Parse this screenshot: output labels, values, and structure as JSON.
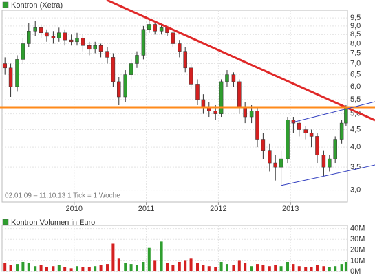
{
  "chart_data": [
    {
      "type": "candlestick",
      "title": "Kontron (Xetra)",
      "annotation": "02.01.09 – 11.10.13  1 Tick = 1 Woche",
      "x": [
        2009.04,
        2009.12,
        2009.21,
        2009.29,
        2009.37,
        2009.46,
        2009.54,
        2009.62,
        2009.71,
        2009.79,
        2009.87,
        2009.96,
        2010.04,
        2010.12,
        2010.21,
        2010.29,
        2010.37,
        2010.46,
        2010.54,
        2010.62,
        2010.71,
        2010.79,
        2010.87,
        2010.96,
        2011.04,
        2011.12,
        2011.21,
        2011.29,
        2011.37,
        2011.46,
        2011.54,
        2011.62,
        2011.71,
        2011.79,
        2011.87,
        2011.96,
        2012.04,
        2012.12,
        2012.21,
        2012.29,
        2012.37,
        2012.46,
        2012.54,
        2012.62,
        2012.71,
        2012.79,
        2012.87,
        2012.96,
        2013.04,
        2013.12,
        2013.21,
        2013.29,
        2013.37,
        2013.46,
        2013.54,
        2013.62,
        2013.71,
        2013.77
      ],
      "open": [
        7.0,
        6.8,
        6.0,
        7.2,
        8.0,
        8.7,
        8.9,
        8.6,
        8.4,
        8.3,
        8.6,
        8.2,
        8.1,
        8.3,
        7.9,
        7.7,
        7.9,
        7.6,
        7.3,
        6.2,
        5.6,
        6.5,
        7.0,
        7.4,
        8.8,
        9.1,
        8.7,
        8.9,
        8.6,
        8.0,
        7.6,
        6.8,
        6.1,
        5.5,
        5.2,
        5.1,
        5.0,
        6.2,
        6.5,
        6.2,
        5.2,
        4.9,
        5.1,
        4.2,
        3.9,
        3.6,
        3.5,
        3.7,
        4.8,
        4.7,
        4.5,
        4.4,
        4.3,
        3.8,
        3.5,
        3.7,
        4.2,
        4.7
      ],
      "high": [
        7.3,
        7.0,
        7.4,
        8.3,
        9.2,
        9.3,
        9.1,
        8.8,
        8.7,
        8.9,
        8.8,
        8.5,
        8.6,
        8.5,
        8.1,
        8.1,
        8.0,
        7.8,
        7.5,
        6.4,
        6.7,
        7.2,
        7.6,
        9.0,
        9.4,
        9.2,
        9.1,
        9.0,
        8.7,
        8.2,
        7.8,
        7.0,
        6.3,
        5.7,
        5.4,
        5.3,
        6.3,
        6.7,
        6.6,
        6.3,
        5.4,
        5.3,
        5.2,
        4.4,
        4.1,
        3.8,
        3.9,
        4.9,
        4.9,
        4.8,
        4.6,
        4.5,
        4.4,
        3.9,
        3.8,
        4.3,
        4.8,
        5.3
      ],
      "low": [
        6.5,
        5.6,
        5.8,
        7.0,
        7.8,
        8.4,
        8.3,
        8.1,
        8.0,
        8.1,
        7.9,
        7.9,
        7.9,
        7.6,
        7.4,
        7.5,
        7.3,
        7.0,
        6.0,
        5.3,
        5.4,
        6.3,
        6.8,
        7.2,
        8.6,
        8.5,
        8.5,
        8.4,
        7.8,
        7.3,
        6.6,
        5.9,
        5.3,
        5.0,
        4.9,
        4.8,
        4.9,
        6.0,
        6.0,
        5.0,
        4.7,
        4.7,
        4.0,
        3.7,
        3.4,
        3.2,
        3.1,
        3.6,
        4.4,
        4.3,
        4.2,
        4.0,
        3.6,
        3.3,
        3.4,
        3.6,
        4.1,
        4.6
      ],
      "close": [
        6.8,
        6.0,
        7.2,
        8.0,
        8.7,
        8.9,
        8.6,
        8.4,
        8.3,
        8.6,
        8.2,
        8.1,
        8.3,
        7.9,
        7.7,
        7.9,
        7.6,
        7.3,
        6.2,
        5.6,
        6.5,
        7.0,
        7.4,
        8.8,
        9.1,
        8.7,
        8.9,
        8.6,
        8.0,
        7.6,
        6.8,
        6.1,
        5.5,
        5.2,
        5.1,
        5.0,
        6.2,
        6.5,
        6.2,
        5.2,
        4.9,
        5.1,
        4.2,
        3.9,
        3.6,
        3.5,
        3.7,
        4.8,
        4.7,
        4.5,
        4.4,
        4.3,
        3.8,
        3.5,
        3.7,
        4.2,
        4.7,
        5.2
      ],
      "up_color": "#2f9e2f",
      "down_color": "#d42020",
      "xlim": [
        2009.0,
        2013.79
      ],
      "xticks": [
        2010,
        2011,
        2012,
        2013
      ],
      "ylim": [
        2.77,
        10.0
      ],
      "log_scale": true,
      "grid": true,
      "yticks": [
        {
          "value": 3.0,
          "label": "3,0"
        },
        {
          "value": 3.5,
          "label": "3,5"
        },
        {
          "value": 4.0,
          "label": "4,0"
        },
        {
          "value": 4.5,
          "label": "4,5"
        },
        {
          "value": 5.0,
          "label": "5,0"
        },
        {
          "value": 5.5,
          "label": "5,5"
        },
        {
          "value": 6.0,
          "label": "6,0"
        },
        {
          "value": 6.5,
          "label": "6,5"
        },
        {
          "value": 7.0,
          "label": "7,0"
        },
        {
          "value": 7.5,
          "label": "7,5"
        },
        {
          "value": 8.0,
          "label": "8,0"
        },
        {
          "value": 8.5,
          "label": "8,5"
        },
        {
          "value": 9.0,
          "label": "9,0"
        },
        {
          "value": 9.5,
          "label": "9,5"
        }
      ]
    },
    {
      "type": "bar",
      "title": "Kontron Volumen in Euro",
      "x": [
        2009.04,
        2009.12,
        2009.21,
        2009.29,
        2009.37,
        2009.46,
        2009.54,
        2009.62,
        2009.71,
        2009.79,
        2009.87,
        2009.96,
        2010.04,
        2010.12,
        2010.21,
        2010.29,
        2010.37,
        2010.46,
        2010.54,
        2010.62,
        2010.71,
        2010.79,
        2010.87,
        2010.96,
        2011.04,
        2011.12,
        2011.21,
        2011.29,
        2011.37,
        2011.46,
        2011.54,
        2011.62,
        2011.71,
        2011.79,
        2011.87,
        2011.96,
        2012.04,
        2012.12,
        2012.21,
        2012.29,
        2012.37,
        2012.46,
        2012.54,
        2012.62,
        2012.71,
        2012.79,
        2012.87,
        2012.96,
        2013.04,
        2013.12,
        2013.21,
        2013.29,
        2013.37,
        2013.46,
        2013.54,
        2013.62,
        2013.71,
        2013.77
      ],
      "values": [
        8,
        6,
        7,
        9,
        8,
        5,
        6,
        4,
        5,
        6,
        4,
        3,
        5,
        4,
        4,
        5,
        6,
        7,
        26,
        12,
        8,
        7,
        6,
        9,
        22,
        10,
        28,
        8,
        6,
        9,
        10,
        12,
        8,
        6,
        5,
        4,
        9,
        7,
        6,
        10,
        8,
        5,
        7,
        6,
        5,
        6,
        5,
        9,
        7,
        5,
        4,
        4,
        6,
        5,
        4,
        5,
        7,
        9
      ],
      "xlim": [
        2009.0,
        2013.79
      ],
      "ylim": [
        0,
        43
      ],
      "grid": true,
      "yticks": [
        {
          "value": 0,
          "label": "0M"
        },
        {
          "value": 10,
          "label": "10M"
        },
        {
          "value": 20,
          "label": "20M"
        },
        {
          "value": 30,
          "label": "30M"
        },
        {
          "value": 40,
          "label": "40M"
        }
      ]
    }
  ]
}
